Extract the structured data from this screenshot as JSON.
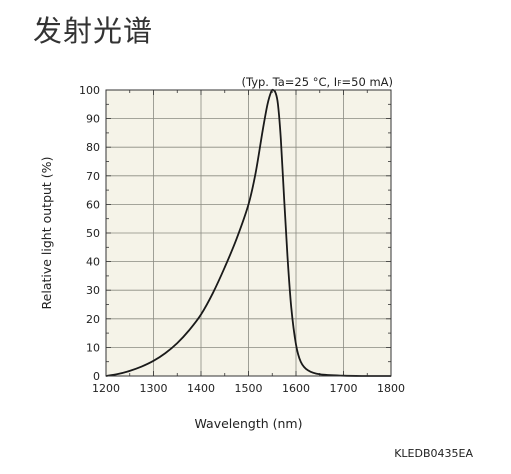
{
  "page_title": "发射光谱",
  "doc_code": "KLEDB0435EA",
  "chart_data": {
    "type": "line",
    "conditions": {
      "prefix": "(Typ. Ta=25 °C, I",
      "subscript": "F",
      "suffix": "=50 mA)"
    },
    "xlabel": "Wavelength (nm)",
    "ylabel": "Relative light output (%)",
    "xlim": [
      1200,
      1800
    ],
    "ylim": [
      0,
      100
    ],
    "xticks": [
      1200,
      1300,
      1400,
      1500,
      1600,
      1700,
      1800
    ],
    "yticks": [
      0,
      10,
      20,
      30,
      40,
      50,
      60,
      70,
      80,
      90,
      100
    ],
    "x_minor_step": 50,
    "y_minor_step": 5,
    "grid": true,
    "plot_bg": "#f5f3e8",
    "line_color": "#1a1a1a",
    "series": [
      {
        "x": [
          1200,
          1225,
          1250,
          1275,
          1300,
          1325,
          1350,
          1375,
          1400,
          1425,
          1450,
          1475,
          1500,
          1515,
          1530,
          1540,
          1548,
          1552,
          1557,
          1562,
          1568,
          1575,
          1582,
          1590,
          1600,
          1610,
          1625,
          1650,
          1700,
          1750,
          1800
        ],
        "y": [
          0,
          0.7,
          1.8,
          3.3,
          5.3,
          8.0,
          11.5,
          16.0,
          21.5,
          29.0,
          38.0,
          48.0,
          60.0,
          71.0,
          86.0,
          95.0,
          99.5,
          100.0,
          99.0,
          95.0,
          83.0,
          62.0,
          42.0,
          24.0,
          11.0,
          5.0,
          2.0,
          0.6,
          0.1,
          0.0,
          0.0
        ]
      }
    ]
  }
}
